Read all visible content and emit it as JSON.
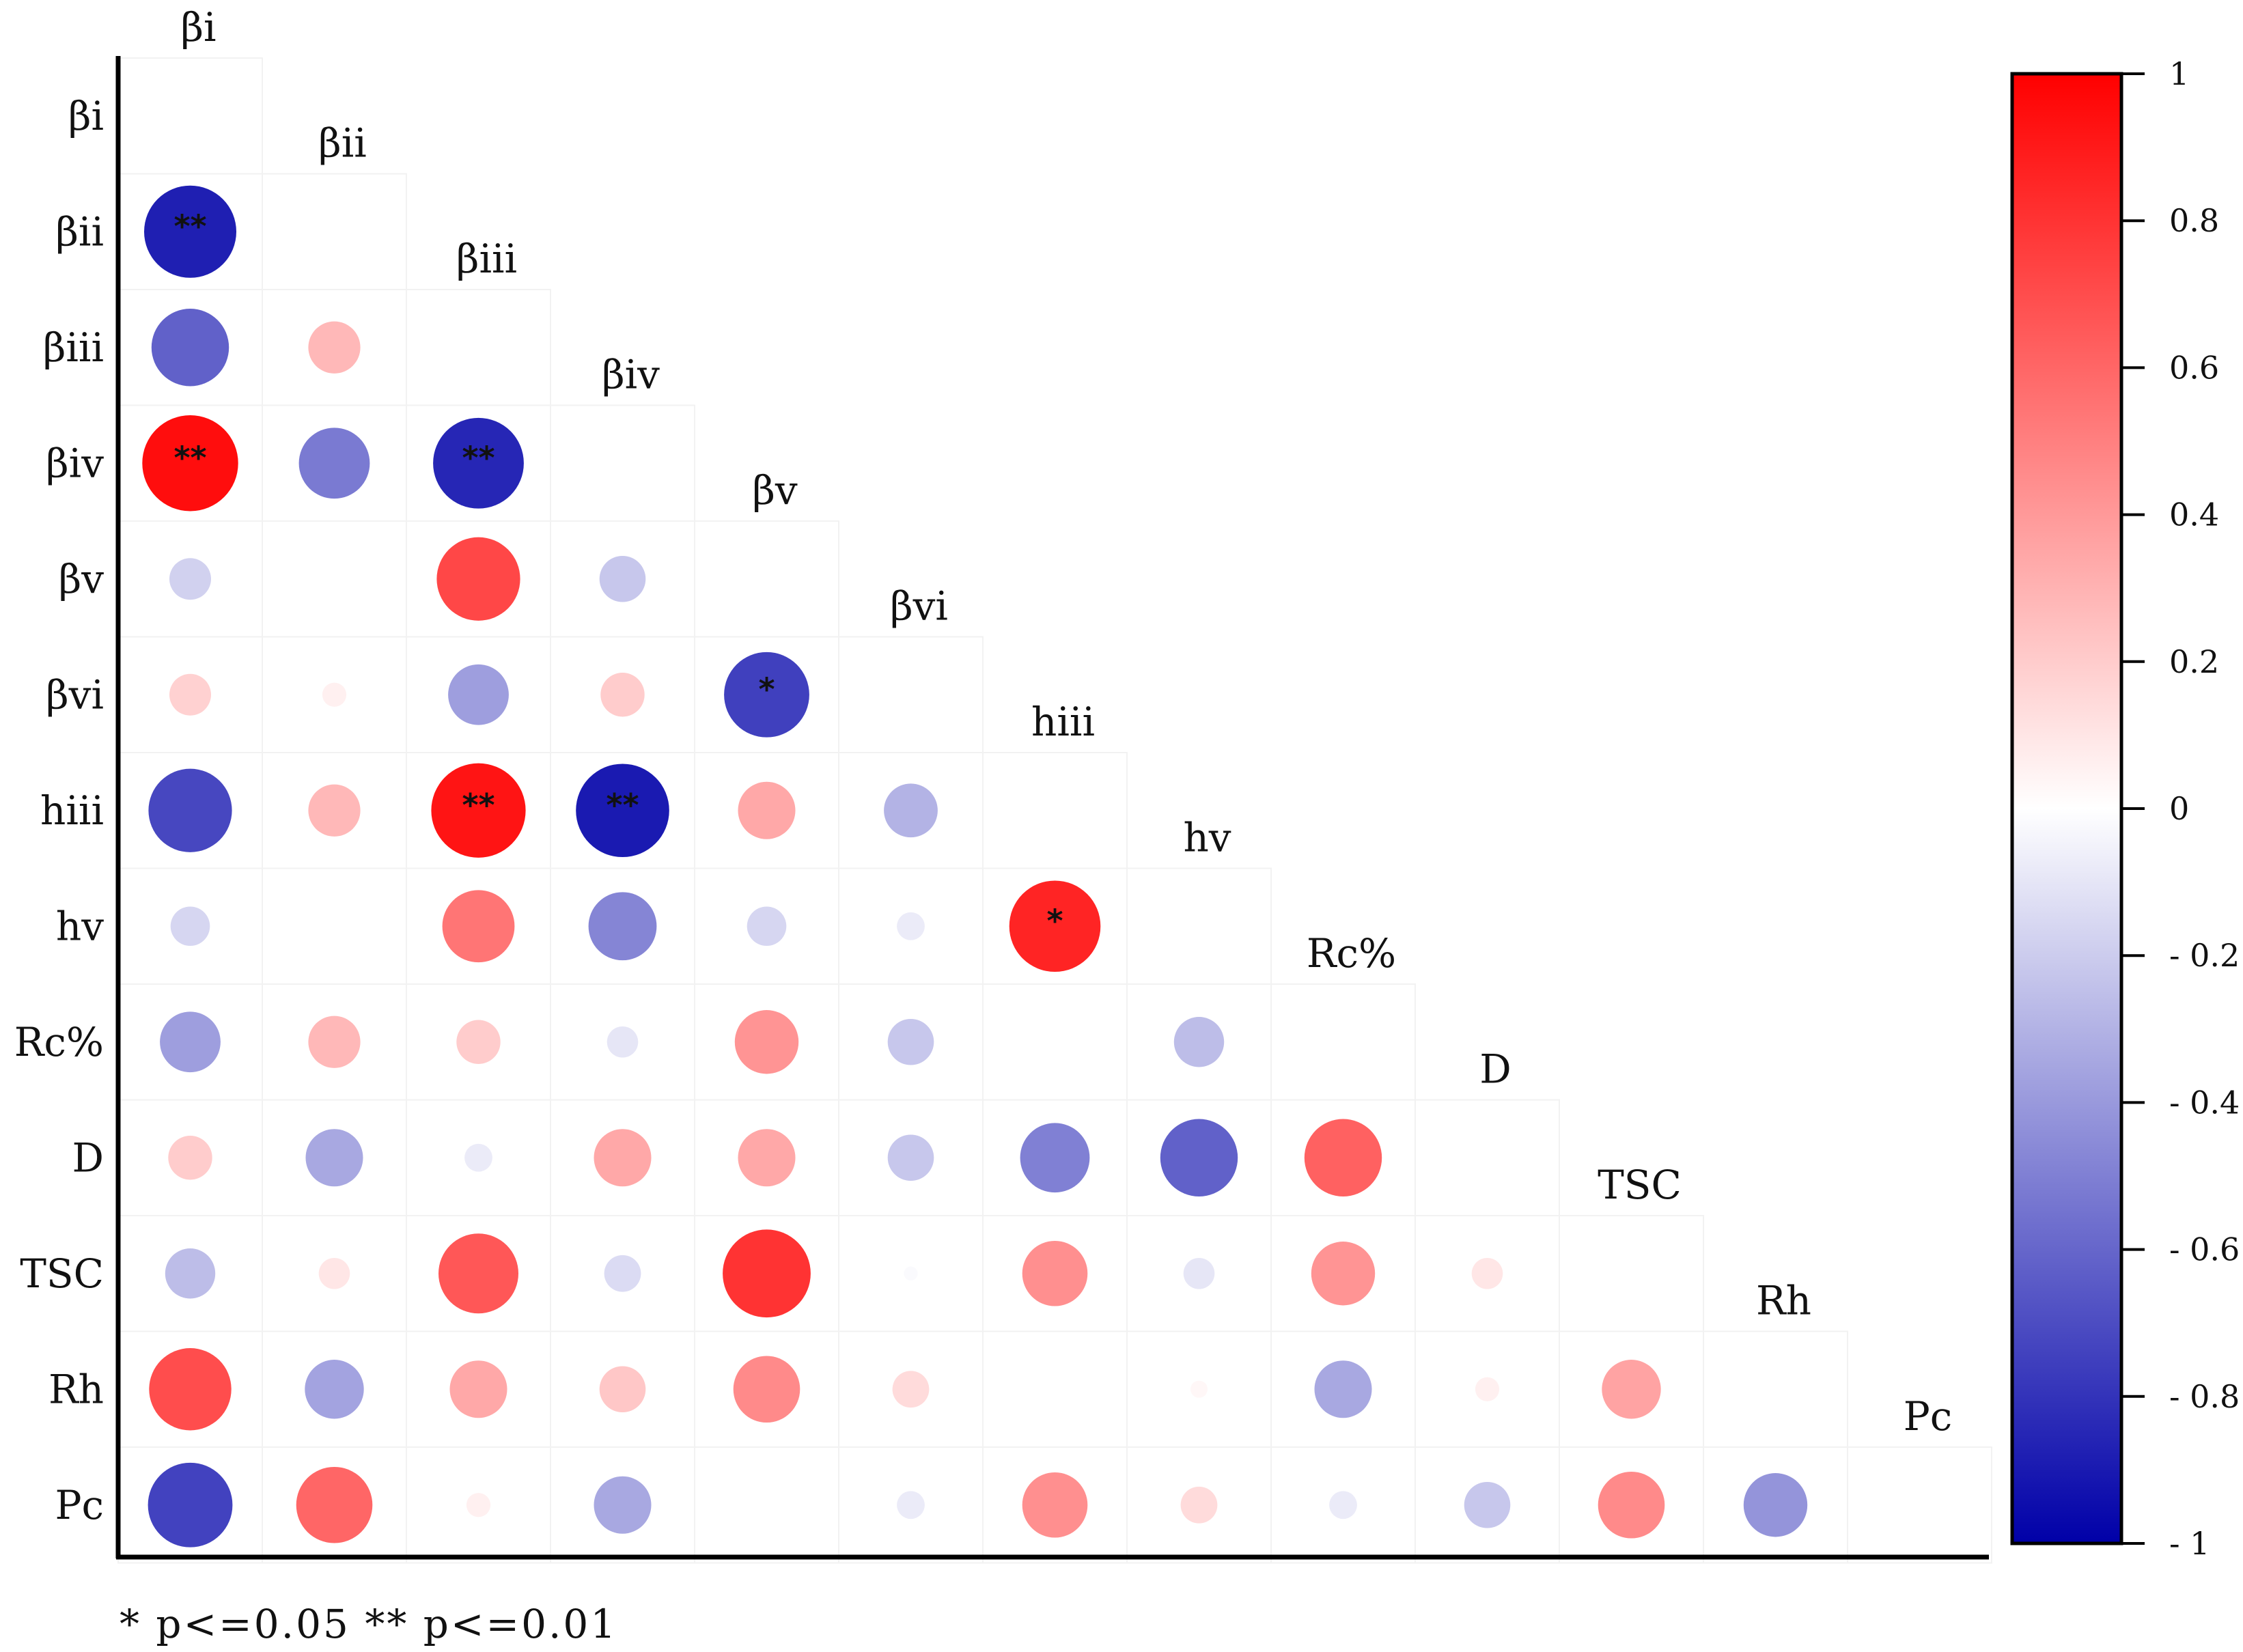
{
  "chart_data": {
    "type": "heatmap",
    "subtype": "lower-triangle-correlation-circles",
    "variables": [
      "βi",
      "βii",
      "βiii",
      "βiv",
      "βv",
      "βvi",
      "hiii",
      "hv",
      "Rc%",
      "D",
      "TSC",
      "Rh",
      "Pc"
    ],
    "matrix": [
      [],
      [
        -0.88
      ],
      [
        -0.62,
        0.28
      ],
      [
        0.95,
        -0.52,
        -0.85
      ],
      [
        -0.18,
        0.0,
        0.72,
        -0.22
      ],
      [
        0.18,
        0.06,
        -0.38,
        0.2,
        -0.75
      ],
      [
        -0.72,
        0.28,
        0.92,
        -0.9,
        0.34,
        -0.3
      ],
      [
        -0.16,
        0.0,
        0.54,
        -0.48,
        -0.16,
        -0.08,
        0.86
      ],
      [
        -0.38,
        0.28,
        0.2,
        -0.1,
        0.42,
        -0.22,
        0.0,
        -0.26
      ],
      [
        0.2,
        -0.34,
        -0.08,
        0.34,
        0.34,
        -0.22,
        -0.5,
        -0.62,
        0.62
      ],
      [
        -0.26,
        0.1,
        0.66,
        -0.14,
        0.8,
        -0.02,
        0.44,
        -0.1,
        0.42,
        0.1
      ],
      [
        0.7,
        -0.36,
        0.34,
        0.22,
        0.46,
        0.14,
        0.0,
        0.03,
        -0.34,
        0.06,
        0.36
      ],
      [
        -0.74,
        0.6,
        0.06,
        -0.34,
        0.0,
        -0.08,
        0.44,
        0.14,
        -0.08,
        -0.22,
        0.46,
        -0.42
      ]
    ],
    "significance": [
      {
        "row": "βii",
        "col": "βi",
        "mark": "**"
      },
      {
        "row": "βiv",
        "col": "βi",
        "mark": "**"
      },
      {
        "row": "βiv",
        "col": "βiii",
        "mark": "**"
      },
      {
        "row": "βvi",
        "col": "βv",
        "mark": "*"
      },
      {
        "row": "hiii",
        "col": "βiii",
        "mark": "**"
      },
      {
        "row": "hiii",
        "col": "βiv",
        "mark": "**"
      },
      {
        "row": "hv",
        "col": "hiii",
        "mark": "*"
      }
    ],
    "colorbar": {
      "range": [
        -1,
        1
      ],
      "ticks": [
        "1",
        "0.8",
        "0.6",
        "0.4",
        "0.2",
        "0",
        "- 0.2",
        "- 0.4",
        "- 0.6",
        "- 0.8",
        "- 1"
      ],
      "colors": {
        "negative": "#0000a8",
        "zero": "#ffffff",
        "positive": "#ff0000"
      }
    },
    "legend_note": "* p<=0.05   ** p<=0.01"
  }
}
